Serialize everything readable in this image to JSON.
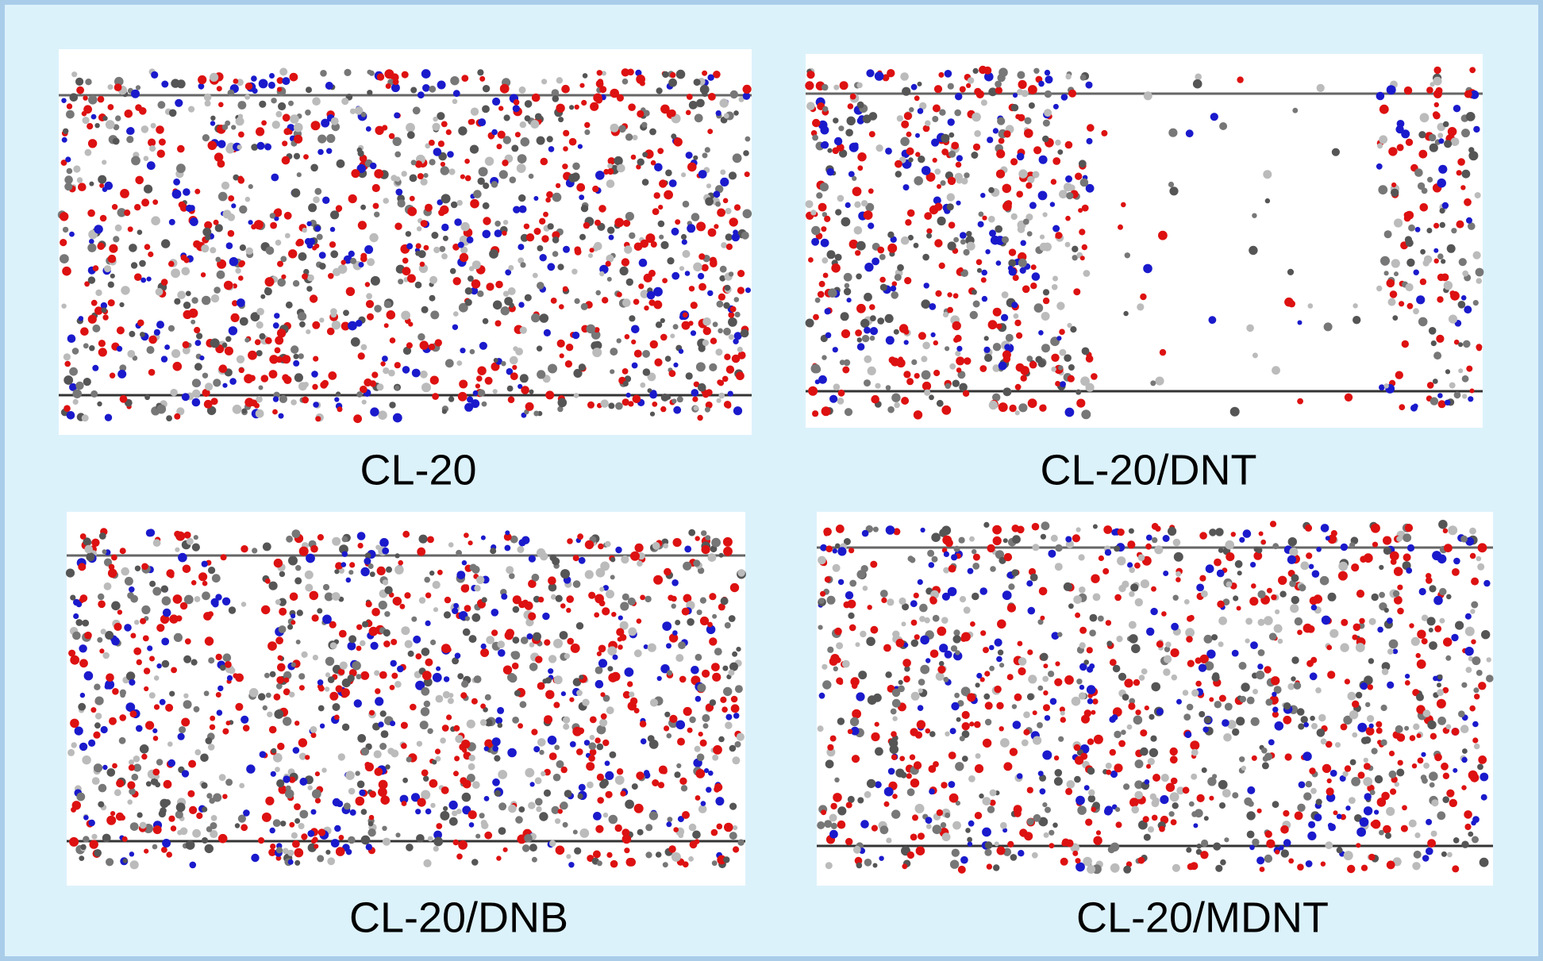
{
  "panels": [
    {
      "label": "CL-20"
    },
    {
      "label": "CL-20/DNT"
    },
    {
      "label": "CL-20/DNB"
    },
    {
      "label": "CL-20/MDNT"
    }
  ]
}
